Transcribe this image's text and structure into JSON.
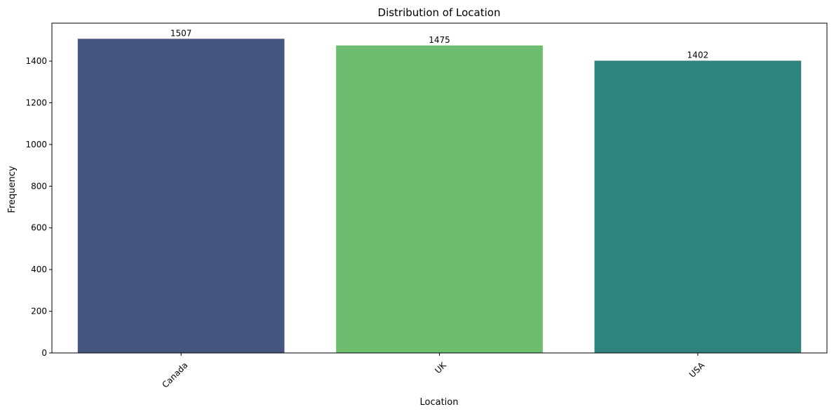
{
  "chart_data": {
    "type": "bar",
    "title": "Distribution of Location",
    "xlabel": "Location",
    "ylabel": "Frequency",
    "categories": [
      "Canada",
      "UK",
      "USA"
    ],
    "values": [
      1507,
      1475,
      1402
    ],
    "value_labels": [
      "1507",
      "1475",
      "1402"
    ],
    "colors": [
      "#46577f",
      "#6cbd6f",
      "#2e837d"
    ],
    "ylim": [
      0,
      1582
    ],
    "yticks": [
      0,
      200,
      400,
      600,
      800,
      1000,
      1200,
      1400
    ],
    "ytick_labels": [
      "0",
      "200",
      "400",
      "600",
      "800",
      "1000",
      "1200",
      "1400"
    ],
    "xtick_rotation": 45,
    "grid": false,
    "legend": "none"
  }
}
